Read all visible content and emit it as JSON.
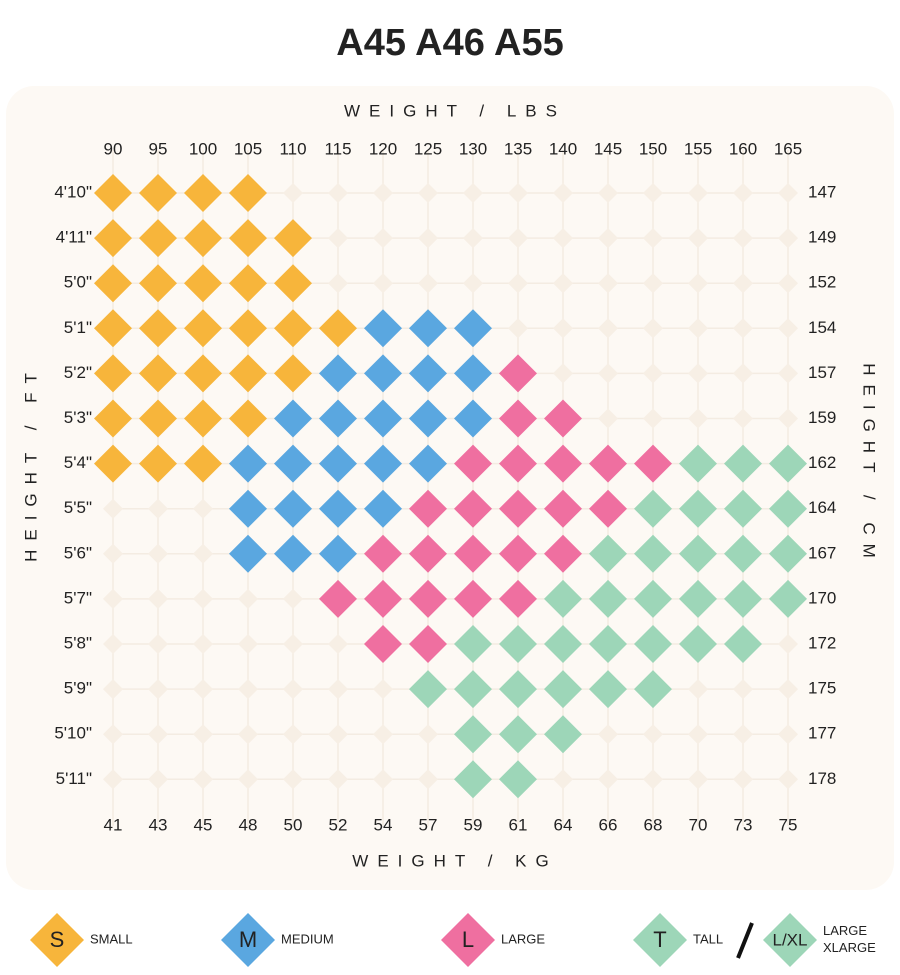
{
  "title": "A45 A46 A55",
  "top_axis_label": "WEIGHT / LBS",
  "bottom_axis_label": "WEIGHT / KG",
  "left_axis_label": "HEIGHT / FT",
  "right_axis_label": "HEIGHT / CM",
  "lbs": [
    90,
    95,
    100,
    105,
    110,
    115,
    120,
    125,
    130,
    135,
    140,
    145,
    150,
    155,
    160,
    165
  ],
  "kg": [
    41,
    43,
    45,
    48,
    50,
    52,
    54,
    57,
    59,
    61,
    64,
    66,
    68,
    70,
    73,
    75
  ],
  "ft": [
    "4'10\"",
    "4'11\"",
    "5'0\"",
    "5'1\"",
    "5'2\"",
    "5'3\"",
    "5'4\"",
    "5'5\"",
    "5'6\"",
    "5'7\"",
    "5'8\"",
    "5'9\"",
    "5'10\"",
    "5'11\""
  ],
  "cm": [
    147,
    149,
    152,
    154,
    157,
    159,
    162,
    164,
    167,
    170,
    172,
    175,
    177,
    178
  ],
  "grid": [
    [
      "S",
      "S",
      "S",
      "S",
      null,
      null,
      null,
      null,
      null,
      null,
      null,
      null,
      null,
      null,
      null,
      null
    ],
    [
      "S",
      "S",
      "S",
      "S",
      "S",
      null,
      null,
      null,
      null,
      null,
      null,
      null,
      null,
      null,
      null,
      null
    ],
    [
      "S",
      "S",
      "S",
      "S",
      "S",
      null,
      null,
      null,
      null,
      null,
      null,
      null,
      null,
      null,
      null,
      null
    ],
    [
      "S",
      "S",
      "S",
      "S",
      "S",
      "S",
      "M",
      "M",
      "M",
      null,
      null,
      null,
      null,
      null,
      null,
      null
    ],
    [
      "S",
      "S",
      "S",
      "S",
      "S",
      "M",
      "M",
      "M",
      "M",
      "L",
      null,
      null,
      null,
      null,
      null,
      null
    ],
    [
      "S",
      "S",
      "S",
      "S",
      "M",
      "M",
      "M",
      "M",
      "M",
      "L",
      "L",
      null,
      null,
      null,
      null,
      null
    ],
    [
      "S",
      "S",
      "S",
      "M",
      "M",
      "M",
      "M",
      "M",
      "L",
      "L",
      "L",
      "L",
      "L",
      "T",
      "T",
      "T"
    ],
    [
      null,
      null,
      null,
      "M",
      "M",
      "M",
      "M",
      "L",
      "L",
      "L",
      "L",
      "L",
      "T",
      "T",
      "T",
      "T"
    ],
    [
      null,
      null,
      null,
      "M",
      "M",
      "M",
      "L",
      "L",
      "L",
      "L",
      "L",
      "T",
      "T",
      "T",
      "T",
      "T"
    ],
    [
      null,
      null,
      null,
      null,
      null,
      "L",
      "L",
      "L",
      "L",
      "L",
      "T",
      "T",
      "T",
      "T",
      "T",
      "T"
    ],
    [
      null,
      null,
      null,
      null,
      null,
      null,
      "L",
      "L",
      "T",
      "T",
      "T",
      "T",
      "T",
      "T",
      "T",
      null
    ],
    [
      null,
      null,
      null,
      null,
      null,
      null,
      null,
      "T",
      "T",
      "T",
      "T",
      "T",
      "T",
      null,
      null,
      null
    ],
    [
      null,
      null,
      null,
      null,
      null,
      null,
      null,
      null,
      "T",
      "T",
      "T",
      null,
      null,
      null,
      null,
      null
    ],
    [
      null,
      null,
      null,
      null,
      null,
      null,
      null,
      null,
      "T",
      "T",
      null,
      null,
      null,
      null,
      null,
      null
    ]
  ],
  "legend": [
    {
      "letter": "S",
      "label": [
        "SMALL"
      ],
      "color": "#f7b53b"
    },
    {
      "letter": "M",
      "label": [
        "MEDIUM"
      ],
      "color": "#5aa7e0"
    },
    {
      "letter": "L",
      "label": [
        "LARGE"
      ],
      "color": "#ef6fa0"
    },
    {
      "letter": "T",
      "label": [
        "TALL"
      ],
      "color": "#9dd6b8"
    },
    {
      "letter": "L/XL",
      "label": [
        "LARGE",
        "XLARGE"
      ],
      "color": "#9dd6b8"
    }
  ]
}
